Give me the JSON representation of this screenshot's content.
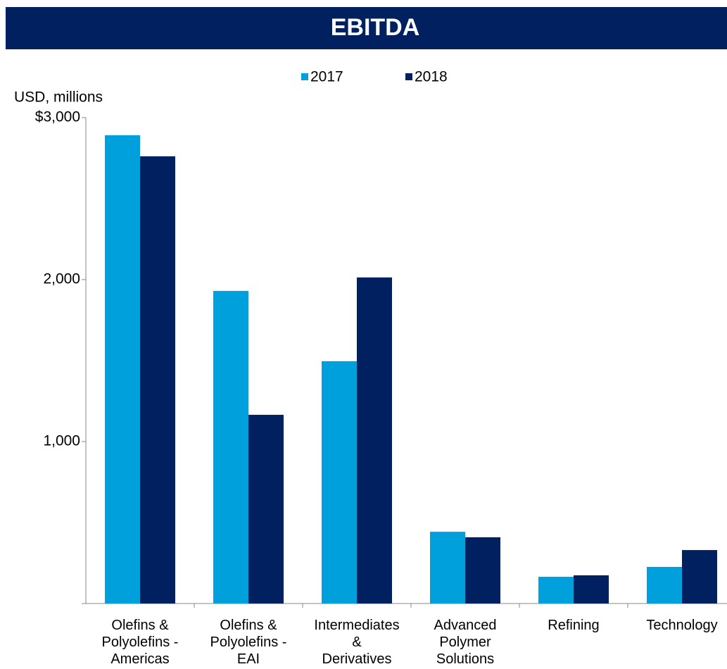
{
  "chart_data": {
    "type": "bar",
    "title": "EBITDA",
    "y_label": "USD, millions",
    "categories": [
      "Olefins &\nPolyolefins -\nAmericas",
      "Olefins &\nPolyolefins -\nEAI",
      "Intermediates\n&\nDerivatives",
      "Advanced\nPolymer\nSolutions",
      "Refining",
      "Technology"
    ],
    "series": [
      {
        "name": "2017",
        "color": "#00a0dc",
        "values": [
          2891,
          1930,
          1496,
          443,
          165,
          226
        ]
      },
      {
        "name": "2018",
        "color": "#002060",
        "values": [
          2761,
          1165,
          2013,
          409,
          174,
          330
        ]
      }
    ],
    "ylim": [
      0,
      3000
    ],
    "yticks": [
      {
        "value": 1000,
        "label": "1,000"
      },
      {
        "value": 2000,
        "label": "2,000"
      },
      {
        "value": 3000,
        "label": "$3,000"
      }
    ],
    "legend": "top"
  }
}
